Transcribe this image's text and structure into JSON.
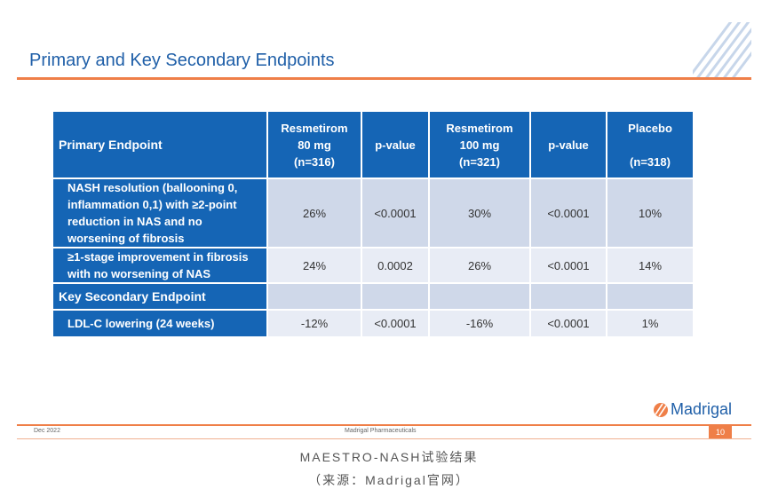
{
  "slide": {
    "title": "Primary and Key Secondary Endpoints",
    "table": {
      "header": {
        "primary_endpoint": "Primary Endpoint",
        "col1": [
          "Resmetirom",
          "80 mg",
          "(n=316)"
        ],
        "col2": "p-value",
        "col3": [
          "Resmetirom",
          "100 mg",
          "(n=321)"
        ],
        "col4": "p-value",
        "col5": [
          "Placebo",
          "(n=318)"
        ]
      },
      "rows": [
        {
          "label": [
            "NASH resolution (ballooning 0,",
            "inflammation 0,1) with ≥2-point",
            "reduction in NAS and no",
            "worsening of fibrosis"
          ],
          "values": [
            "26%",
            "<0.0001",
            "30%",
            "<0.0001",
            "10%"
          ]
        },
        {
          "label": [
            "≥1-stage improvement in fibrosis",
            "with no worsening of NAS"
          ],
          "values": [
            "24%",
            "0.0002",
            "26%",
            "<0.0001",
            "14%"
          ]
        },
        {
          "label": [
            "Key Secondary Endpoint"
          ],
          "values": [
            "",
            "",
            "",
            "",
            ""
          ]
        },
        {
          "label": [
            "LDL-C lowering (24 weeks)"
          ],
          "values": [
            "-12%",
            "<0.0001",
            "-16%",
            "<0.0001",
            "1%"
          ]
        }
      ]
    },
    "footer": {
      "date": "Dec 2022",
      "company": "Madrigal Pharmaceuticals",
      "page": "10",
      "logo": "Madrigal"
    }
  },
  "caption": {
    "line1": "MAESTRO-NASH试验结果",
    "line2": "（来源：Madrigal官网）"
  },
  "colors": {
    "title_blue": "#1f5fa8",
    "header_blue": "#1565b5",
    "accent_orange": "#ef7f48",
    "row_dark": "#cfd8e9",
    "row_light": "#e8ecf5"
  }
}
